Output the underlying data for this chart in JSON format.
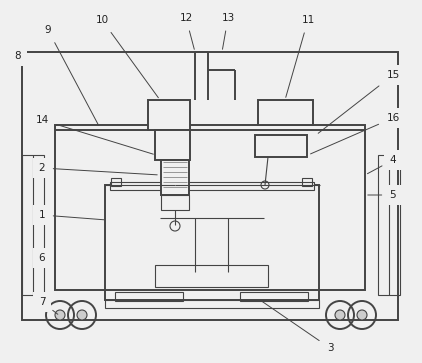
{
  "bg_color": "#f0f0f0",
  "line_color": "#444444",
  "lw_main": 1.4,
  "lw_thin": 0.8,
  "lw_label": 0.7,
  "label_fontsize": 7.5,
  "label_color": "#222222"
}
